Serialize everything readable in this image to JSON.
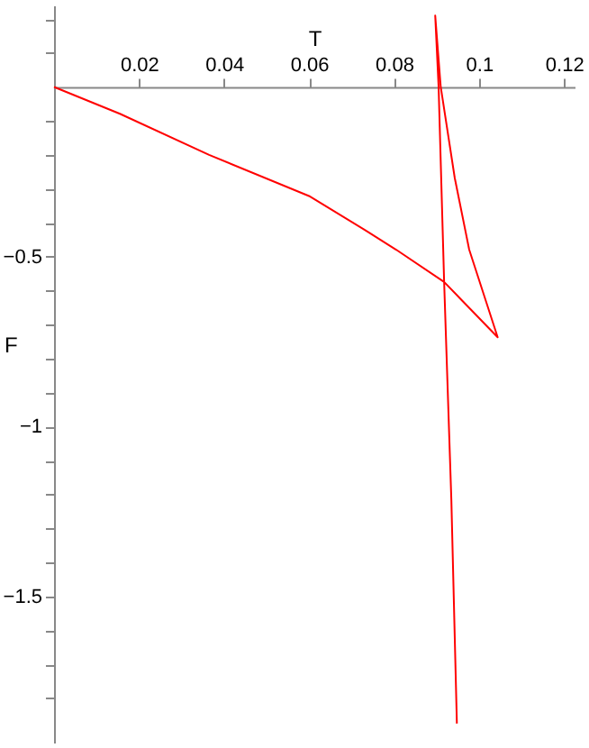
{
  "chart_data": {
    "type": "line",
    "xlabel": "T",
    "ylabel": "F",
    "x": [
      0,
      0.0155,
      0.0365,
      0.06,
      0.0738,
      0.0805,
      0.0918,
      0.1044,
      0.0977,
      0.0943,
      0.091,
      0.0897,
      0.0905,
      0.0918,
      0.0935,
      0.0948
    ],
    "series": [
      {
        "color": "#ff0000",
        "values": [
          0,
          -0.079,
          -0.2,
          -0.321,
          -0.426,
          -0.479,
          -0.574,
          -0.737,
          -0.479,
          -0.268,
          0,
          0.21,
          0,
          -0.574,
          -1.216,
          -1.874
        ]
      }
    ],
    "xlim": [
      0,
      0.1225
    ],
    "ylim": [
      -1.93,
      0.24
    ],
    "xticks": [
      0.02,
      0.04,
      0.06,
      0.08,
      {
        "value": 0.1,
        "label": "0.1"
      },
      0.12
    ],
    "yticks": [
      {
        "value": -0.5,
        "label": "−0.5"
      },
      {
        "value": -1,
        "label": "−1"
      },
      {
        "value": -1.5,
        "label": "−1.5"
      },
      {
        "value": 0.2,
        "label": null
      },
      {
        "value": 0.1,
        "label": null
      },
      {
        "value": -0.1,
        "label": null
      },
      {
        "value": -0.2,
        "label": null
      },
      {
        "value": -0.3,
        "label": null
      },
      {
        "value": -0.4,
        "label": null
      },
      {
        "value": -0.6,
        "label": null
      },
      {
        "value": -0.7,
        "label": null
      },
      {
        "value": -0.8,
        "label": null
      },
      {
        "value": -0.9,
        "label": null
      },
      {
        "value": -1.1,
        "label": null
      },
      {
        "value": -1.2,
        "label": null
      },
      {
        "value": -1.3,
        "label": null
      },
      {
        "value": -1.4,
        "label": null
      },
      {
        "value": -1.6,
        "label": null
      },
      {
        "value": -1.7,
        "label": null
      },
      {
        "value": -1.8,
        "label": null
      }
    ],
    "grid": false,
    "marker": "none",
    "line_style": "solid"
  }
}
